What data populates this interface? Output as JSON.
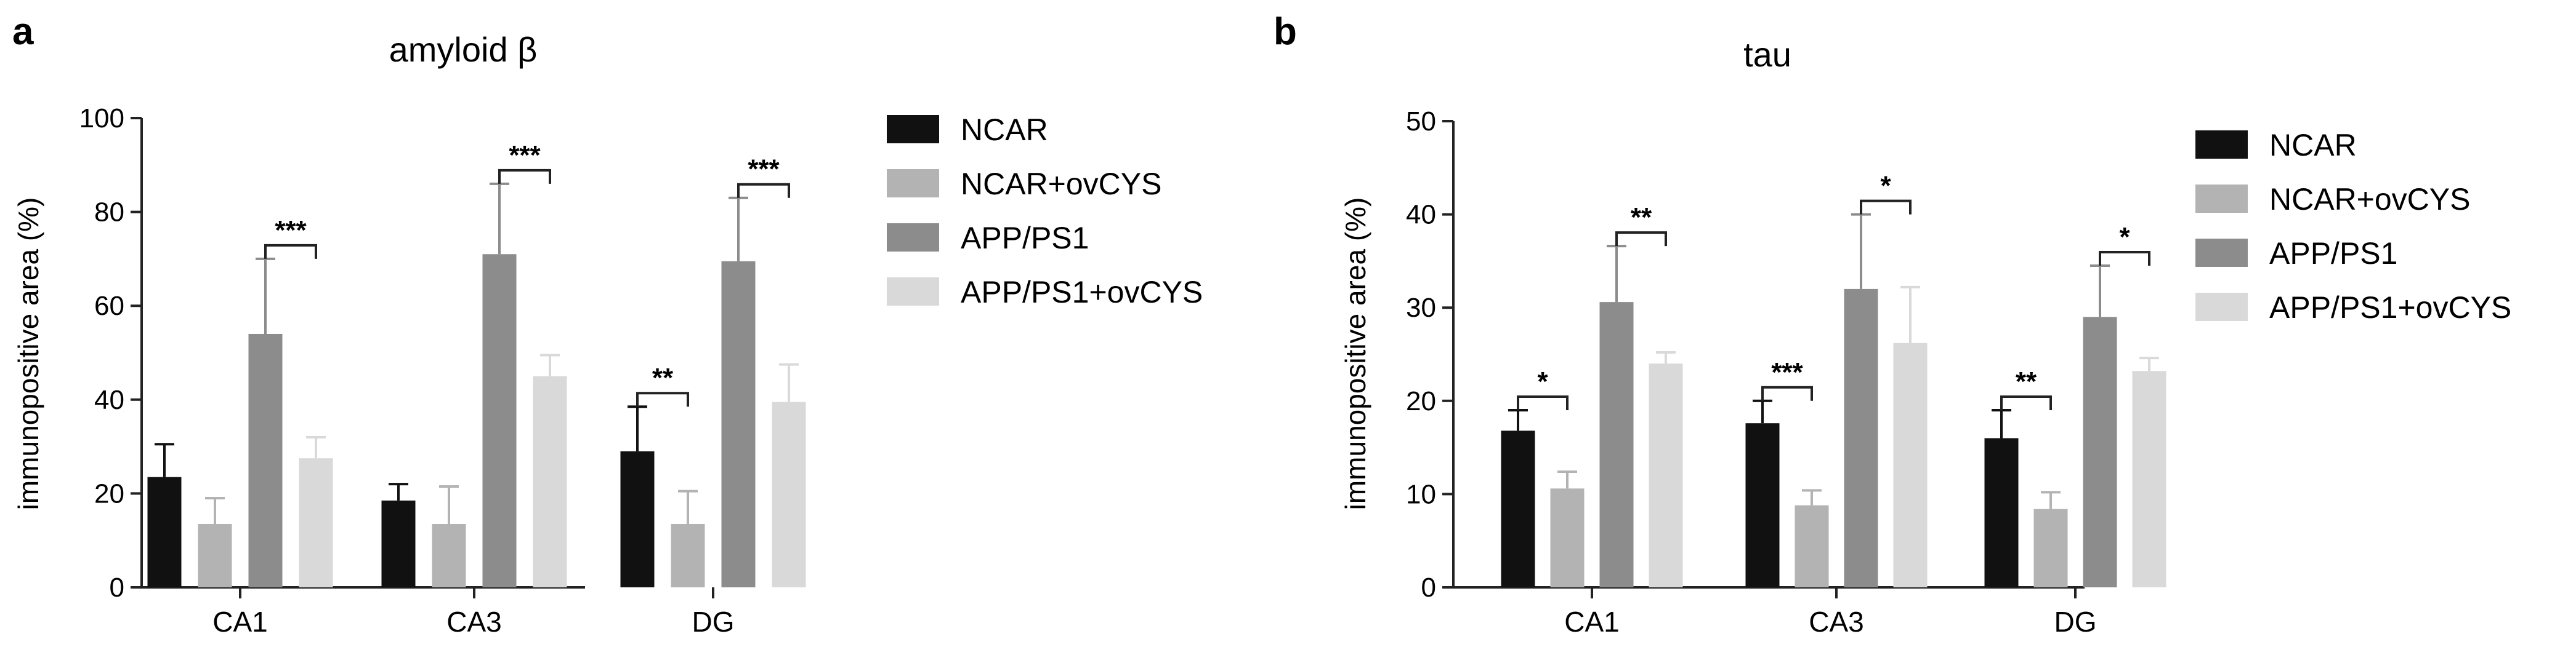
{
  "chart_data": [
    {
      "type": "bar",
      "panel": "a",
      "title": "amyloid β",
      "ylabel": "immunopositive area (%)",
      "xlabel": "",
      "ylim": [
        0,
        100
      ],
      "yticks": [
        "0",
        "20",
        "40",
        "60",
        "80",
        "100"
      ],
      "categories": [
        "CA1",
        "CA3",
        "DG"
      ],
      "legend_position": "right",
      "series": [
        {
          "name": "NCAR",
          "color": "#111111",
          "values": [
            23.5,
            18.5,
            29
          ],
          "errors": [
            7,
            3.5,
            9.5
          ]
        },
        {
          "name": "NCAR+ovCYS",
          "color": "#b3b3b3",
          "values": [
            13.5,
            13.5,
            13.5
          ],
          "errors": [
            5.5,
            8,
            7
          ]
        },
        {
          "name": "APP/PS1",
          "color": "#8c8c8c",
          "values": [
            54,
            71,
            69.5
          ],
          "errors": [
            16,
            15,
            13.5
          ]
        },
        {
          "name": "APP/PS1+ovCYS",
          "color": "#d9d9d9",
          "values": [
            27.5,
            45,
            39.5
          ],
          "errors": [
            4.5,
            4.5,
            8
          ]
        }
      ],
      "significance": [
        {
          "category": "CA1",
          "from": 2,
          "to": 3,
          "label": "***"
        },
        {
          "category": "CA3",
          "from": 2,
          "to": 3,
          "label": "***"
        },
        {
          "category": "DG",
          "from": 0,
          "to": 1,
          "label": "**"
        },
        {
          "category": "DG",
          "from": 2,
          "to": 3,
          "label": "***"
        }
      ]
    },
    {
      "type": "bar",
      "panel": "b",
      "title": "tau",
      "ylabel": "immunopositive area (%)",
      "xlabel": "",
      "ylim": [
        0,
        50
      ],
      "yticks": [
        "0",
        "10",
        "20",
        "30",
        "40",
        "50"
      ],
      "categories": [
        "CA1",
        "CA3",
        "DG"
      ],
      "legend_position": "right",
      "series": [
        {
          "name": "NCAR",
          "color": "#111111",
          "values": [
            16.8,
            17.6,
            16
          ],
          "errors": [
            2.2,
            2.4,
            3
          ]
        },
        {
          "name": "NCAR+ovCYS",
          "color": "#b3b3b3",
          "values": [
            10.6,
            8.8,
            8.4
          ],
          "errors": [
            1.8,
            1.6,
            1.8
          ]
        },
        {
          "name": "APP/PS1",
          "color": "#8c8c8c",
          "values": [
            30.6,
            32,
            29
          ],
          "errors": [
            6,
            8,
            5.5
          ]
        },
        {
          "name": "APP/PS1+ovCYS",
          "color": "#d9d9d9",
          "values": [
            24,
            26.2,
            23.2
          ],
          "errors": [
            1.2,
            6,
            1.4
          ]
        }
      ],
      "significance": [
        {
          "category": "CA1",
          "from": 0,
          "to": 1,
          "label": "*"
        },
        {
          "category": "CA1",
          "from": 2,
          "to": 3,
          "label": "**"
        },
        {
          "category": "CA3",
          "from": 0,
          "to": 1,
          "label": "***"
        },
        {
          "category": "CA3",
          "from": 2,
          "to": 3,
          "label": "*"
        },
        {
          "category": "DG",
          "from": 0,
          "to": 1,
          "label": "**"
        },
        {
          "category": "DG",
          "from": 2,
          "to": 3,
          "label": "*"
        }
      ]
    }
  ]
}
